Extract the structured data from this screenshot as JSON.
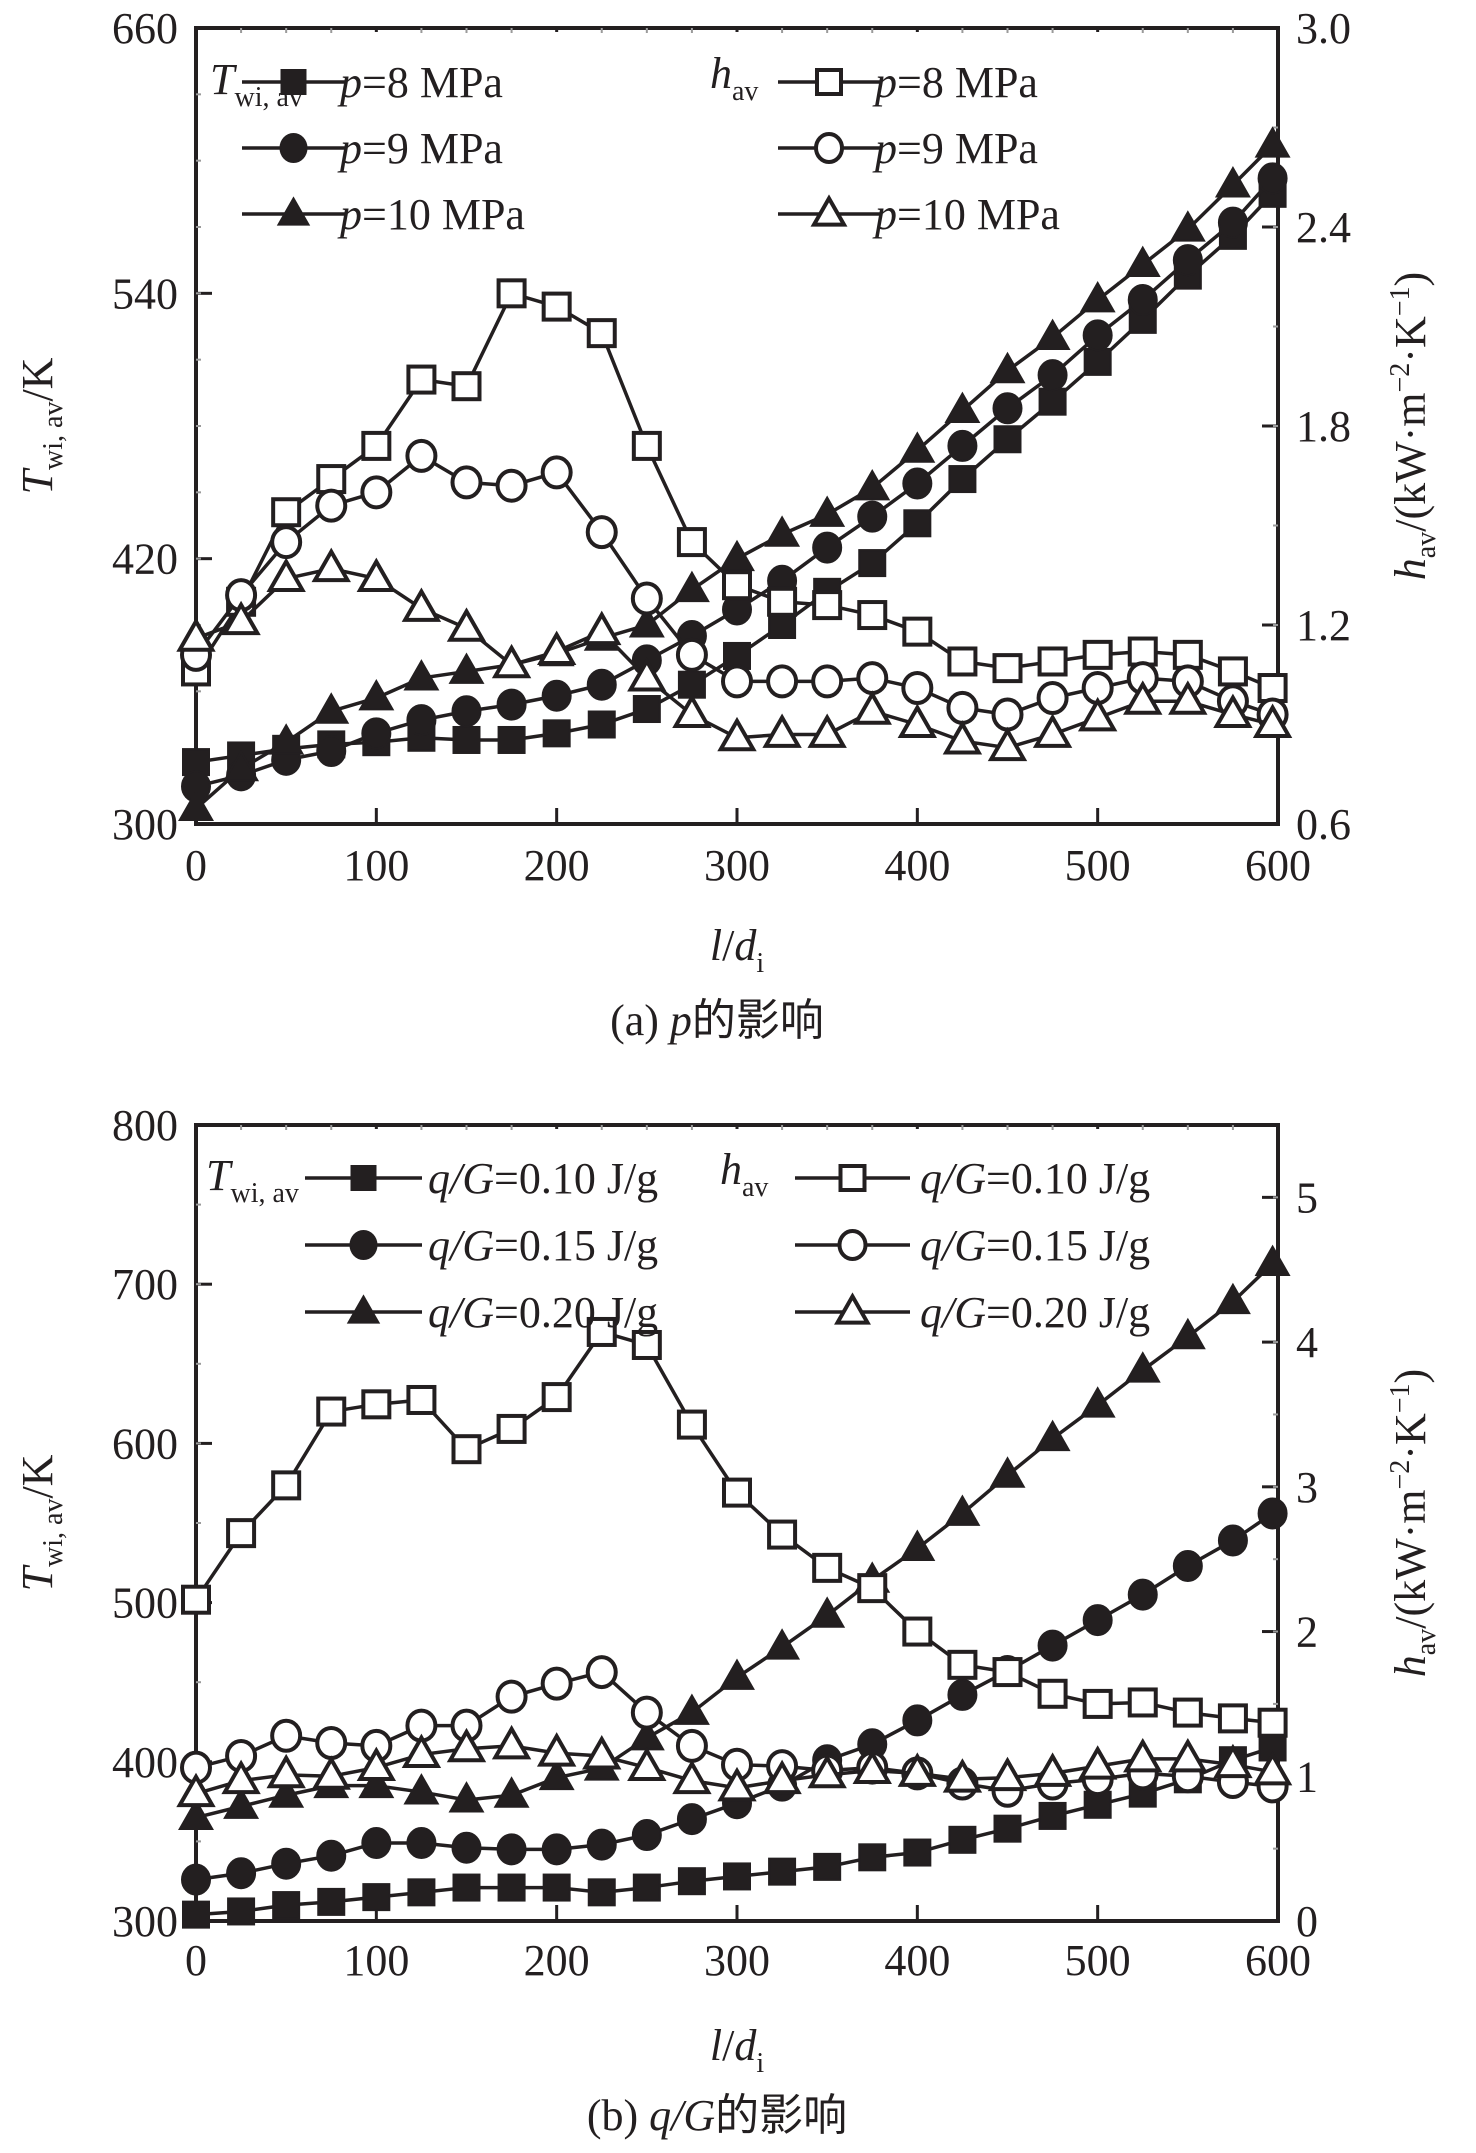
{
  "figure": {
    "panels": [
      {
        "caption_prefix": "(a) ",
        "caption_var": "p",
        "caption_suffix": "的影响",
        "xlabel_main": "l",
        "xlabel_slash": "/",
        "xlabel_var": "d",
        "xlabel_sub": "i",
        "ylabel_left_main": "T",
        "ylabel_left_sub": "wi, av",
        "ylabel_left_unit": "/K",
        "ylabel_right_main": "h",
        "ylabel_right_sub": "av",
        "ylabel_right_unit": "/(kW·m",
        "ylabel_right_exp1": "−2",
        "ylabel_right_mid": "·K",
        "ylabel_right_exp2": "−1",
        "ylabel_right_close": ")",
        "legend_left_title_main": "T",
        "legend_left_title_sub": "wi, av",
        "legend_right_title_main": "h",
        "legend_right_title_sub": "av",
        "legend_var": "p",
        "legend_labels": [
          "=8 MPa",
          "=9 MPa",
          "=10 MPa"
        ]
      },
      {
        "caption_prefix": "(b) ",
        "caption_var": "q/G",
        "caption_suffix": "的影响",
        "xlabel_main": "l",
        "xlabel_slash": "/",
        "xlabel_var": "d",
        "xlabel_sub": "i",
        "ylabel_left_main": "T",
        "ylabel_left_sub": "wi, av",
        "ylabel_left_unit": "/K",
        "ylabel_right_main": "h",
        "ylabel_right_sub": "av",
        "ylabel_right_unit": "/(kW·m",
        "ylabel_right_exp1": "−2",
        "ylabel_right_mid": "·K",
        "ylabel_right_exp2": "−1",
        "ylabel_right_close": ")",
        "legend_left_title_main": "T",
        "legend_left_title_sub": "wi, av",
        "legend_right_title_main": "h",
        "legend_right_title_sub": "av",
        "legend_var": "q/G",
        "legend_labels": [
          "=0.10 J/g",
          "=0.15 J/g",
          "=0.20 J/g"
        ]
      }
    ]
  },
  "chart_data": [
    {
      "type": "line",
      "title": "(a) p的影响",
      "xlabel": "l/d_i",
      "ylabel": "T_wi,av/K",
      "ylabel_right": "h_av/(kW·m^-2·K^-1)",
      "xlim": [
        0,
        600
      ],
      "ylim": [
        300,
        660
      ],
      "ylim_right": [
        0.6,
        3.0
      ],
      "xticks": [
        "0",
        "100",
        "200",
        "300",
        "400",
        "500",
        "600"
      ],
      "yticks": [
        "300",
        "420",
        "540",
        "660"
      ],
      "yticks_right": [
        "0.6",
        "1.2",
        "1.8",
        "2.4",
        "3.0"
      ],
      "legend_position": "top",
      "grid": false,
      "x": [
        0,
        25,
        50,
        75,
        100,
        125,
        150,
        175,
        200,
        225,
        250,
        275,
        300,
        325,
        350,
        375,
        400,
        425,
        450,
        475,
        500,
        525,
        550,
        575,
        597
      ],
      "series": [
        {
          "name": "T_wi,av p=8 MPa",
          "axis": "left",
          "marker": "square",
          "filled": true,
          "values": [
            328,
            331,
            334,
            336,
            337,
            339,
            338,
            338,
            341,
            345,
            352,
            363,
            376,
            390,
            405,
            418,
            436,
            456,
            474,
            491,
            509,
            528,
            548,
            566,
            585
          ]
        },
        {
          "name": "T_wi,av p=9 MPa",
          "axis": "left",
          "marker": "circle",
          "filled": true,
          "values": [
            317,
            322,
            329,
            333,
            341,
            347,
            351,
            354,
            358,
            363,
            374,
            385,
            397,
            410,
            425,
            439,
            454,
            471,
            488,
            503,
            521,
            537,
            555,
            572,
            592
          ]
        },
        {
          "name": "T_wi,av p=10 MPa",
          "axis": "left",
          "marker": "triangle",
          "filled": true,
          "values": [
            307,
            325,
            337,
            351,
            357,
            366,
            369,
            372,
            377,
            384,
            390,
            406,
            420,
            431,
            440,
            452,
            469,
            487,
            505,
            520,
            537,
            553,
            569,
            589,
            607
          ]
        },
        {
          "name": "h_av p=8 MPa",
          "axis": "right",
          "marker": "square",
          "filled": false,
          "values": [
            1.06,
            1.27,
            1.54,
            1.64,
            1.74,
            1.94,
            1.92,
            2.2,
            2.16,
            2.08,
            1.74,
            1.45,
            1.32,
            1.27,
            1.26,
            1.23,
            1.18,
            1.09,
            1.07,
            1.09,
            1.11,
            1.12,
            1.11,
            1.06,
            1.01
          ]
        },
        {
          "name": "h_av p=9 MPa",
          "axis": "right",
          "marker": "circle",
          "filled": false,
          "values": [
            1.11,
            1.29,
            1.45,
            1.56,
            1.6,
            1.71,
            1.63,
            1.62,
            1.66,
            1.48,
            1.28,
            1.11,
            1.03,
            1.03,
            1.03,
            1.04,
            1.01,
            0.95,
            0.93,
            0.98,
            1.01,
            1.04,
            1.03,
            0.97,
            0.93
          ]
        },
        {
          "name": "h_av p=10 MPa",
          "axis": "right",
          "marker": "triangle",
          "filled": false,
          "values": [
            1.16,
            1.21,
            1.34,
            1.37,
            1.34,
            1.25,
            1.19,
            1.08,
            1.12,
            1.18,
            1.04,
            0.93,
            0.86,
            0.87,
            0.87,
            0.94,
            0.9,
            0.85,
            0.83,
            0.87,
            0.92,
            0.97,
            0.97,
            0.93,
            0.9
          ]
        }
      ]
    },
    {
      "type": "line",
      "title": "(b) q/G的影响",
      "xlabel": "l/d_i",
      "ylabel": "T_wi,av/K",
      "ylabel_right": "h_av/(kW·m^-2·K^-1)",
      "xlim": [
        0,
        600
      ],
      "ylim": [
        300,
        800
      ],
      "ylim_right": [
        0,
        5.5
      ],
      "xticks": [
        "0",
        "100",
        "200",
        "300",
        "400",
        "500",
        "600"
      ],
      "yticks": [
        "300",
        "400",
        "500",
        "600",
        "700",
        "800"
      ],
      "yticks_right": [
        "0",
        "1",
        "2",
        "3",
        "4",
        "5"
      ],
      "legend_position": "top",
      "grid": false,
      "x": [
        0,
        25,
        50,
        75,
        100,
        125,
        150,
        175,
        200,
        225,
        250,
        275,
        300,
        325,
        350,
        375,
        400,
        425,
        450,
        475,
        500,
        525,
        550,
        575,
        597
      ],
      "series": [
        {
          "name": "T_wi,av q/G=0.10 J/g",
          "axis": "left",
          "marker": "square",
          "filled": true,
          "values": [
            304,
            306,
            310,
            312,
            315,
            318,
            321,
            321,
            321,
            318,
            321,
            325,
            328,
            331,
            334,
            340,
            343,
            351,
            358,
            366,
            373,
            380,
            389,
            401,
            409
          ]
        },
        {
          "name": "T_wi,av q/G=0.15 J/g",
          "axis": "left",
          "marker": "circle",
          "filled": true,
          "values": [
            326,
            330,
            336,
            341,
            349,
            349,
            346,
            345,
            345,
            348,
            354,
            364,
            374,
            385,
            401,
            411,
            426,
            442,
            457,
            473,
            489,
            505,
            523,
            539,
            556
          ]
        },
        {
          "name": "T_wi,av q/G=0.20 J/g",
          "axis": "left",
          "marker": "triangle",
          "filled": true,
          "values": [
            365,
            372,
            379,
            385,
            385,
            381,
            376,
            379,
            390,
            396,
            415,
            431,
            453,
            472,
            492,
            514,
            534,
            556,
            580,
            603,
            624,
            646,
            667,
            689,
            713
          ]
        },
        {
          "name": "h_av q/G=0.10 J/g",
          "axis": "right",
          "marker": "square",
          "filled": false,
          "values": [
            2.22,
            2.68,
            3.01,
            3.52,
            3.57,
            3.6,
            3.26,
            3.4,
            3.62,
            4.07,
            3.98,
            3.43,
            2.96,
            2.67,
            2.44,
            2.3,
            2.0,
            1.77,
            1.72,
            1.57,
            1.5,
            1.51,
            1.44,
            1.4,
            1.37
          ]
        },
        {
          "name": "h_av q/G=0.15 J/g",
          "axis": "right",
          "marker": "circle",
          "filled": false,
          "values": [
            1.06,
            1.14,
            1.28,
            1.23,
            1.21,
            1.35,
            1.35,
            1.55,
            1.64,
            1.72,
            1.44,
            1.21,
            1.08,
            1.07,
            1.04,
            1.06,
            1.02,
            0.95,
            0.9,
            0.95,
            0.98,
            1.02,
            1.0,
            0.96,
            0.93
          ]
        },
        {
          "name": "h_av q/G=0.20 J/g",
          "axis": "right",
          "marker": "triangle",
          "filled": false,
          "values": [
            0.88,
            0.97,
            1.01,
            1.0,
            1.06,
            1.15,
            1.19,
            1.21,
            1.16,
            1.14,
            1.06,
            0.97,
            0.92,
            0.97,
            1.01,
            1.04,
            1.02,
            0.98,
            0.99,
            1.02,
            1.07,
            1.12,
            1.12,
            1.08,
            1.03
          ]
        }
      ]
    }
  ],
  "colors": {
    "ink": "#231f20",
    "background": "#ffffff"
  }
}
